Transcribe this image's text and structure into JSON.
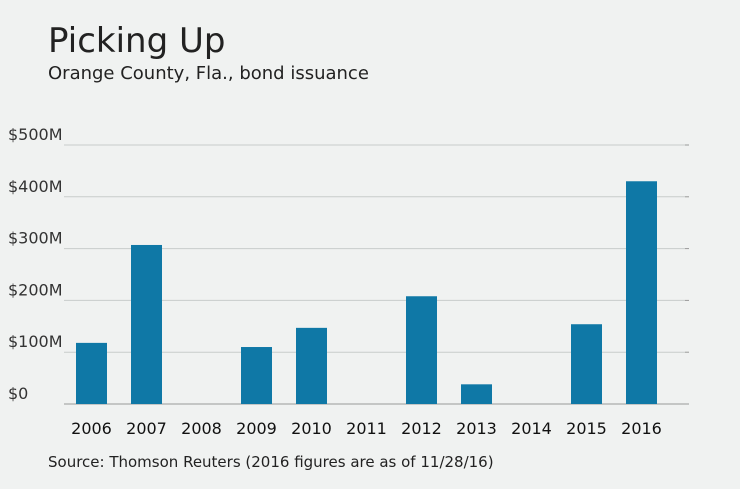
{
  "chart_data": {
    "type": "bar",
    "title": "Picking Up",
    "subtitle": "Orange County, Fla., bond issuance",
    "source": "Source: Thomson Reuters (2016 figures are as of 11/28/16)",
    "categories": [
      "2006",
      "2007",
      "2008",
      "2009",
      "2010",
      "2011",
      "2012",
      "2013",
      "2014",
      "2015",
      "2016"
    ],
    "values": [
      118,
      307,
      0,
      110,
      147,
      0,
      208,
      38,
      0,
      154,
      430
    ],
    "color": "#0f78a6",
    "ylim": [
      0,
      500
    ],
    "yticks": [
      {
        "value": 0,
        "label": "$0"
      },
      {
        "value": 100,
        "label": "$100M"
      },
      {
        "value": 200,
        "label": "$200M"
      },
      {
        "value": 300,
        "label": "$300M"
      },
      {
        "value": 400,
        "label": "$400M"
      },
      {
        "value": 500,
        "label": "$500M"
      }
    ],
    "grid": true
  }
}
